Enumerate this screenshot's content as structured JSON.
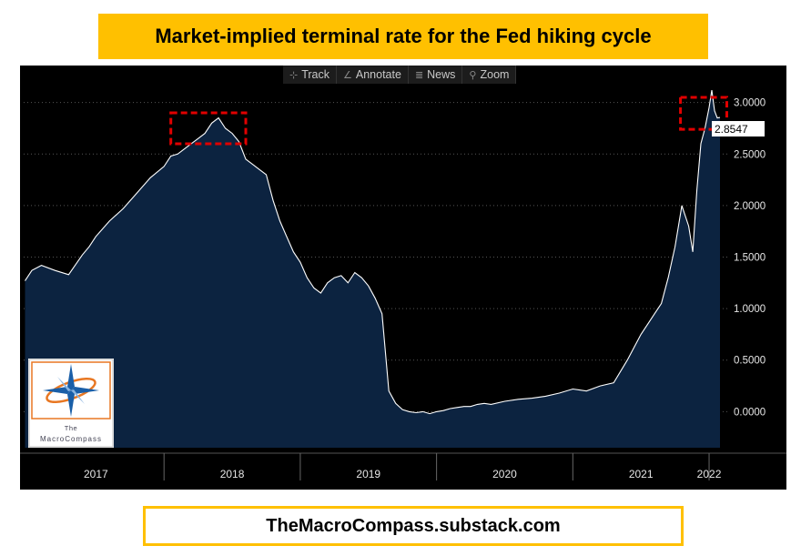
{
  "title": "Market-implied terminal rate for the Fed hiking cycle",
  "footer": "TheMacroCompass.substack.com",
  "toolbar": [
    {
      "icon": "crosshair-icon",
      "glyph": "⊹",
      "label": "Track"
    },
    {
      "icon": "pencil-icon",
      "glyph": "∠",
      "label": "Annotate"
    },
    {
      "icon": "news-icon",
      "glyph": "≣",
      "label": "News"
    },
    {
      "icon": "magnifier-icon",
      "glyph": "⚲",
      "label": "Zoom"
    }
  ],
  "logo": {
    "line1": "The",
    "line2": "MacroCompass"
  },
  "last_value_label": "2.8547",
  "colors": {
    "title_bg": "#ffc000",
    "area_fill": "#0c2340",
    "line": "#ffffff",
    "highlight": "#e00000"
  },
  "chart_data": {
    "type": "area",
    "ylim": [
      -0.35,
      3.2
    ],
    "y_ticks": [
      0.0,
      0.5,
      1.0,
      1.5,
      2.0,
      2.5,
      3.0
    ],
    "y_tick_labels": [
      "0.0000",
      "0.5000",
      "1.0000",
      "1.5000",
      "2.0000",
      "2.5000",
      "3.0000"
    ],
    "x_range": [
      2016.97,
      2022.1
    ],
    "year_labels": [
      {
        "label": "2017",
        "x": 2017.5
      },
      {
        "label": "2018",
        "x": 2018.5
      },
      {
        "label": "2019",
        "x": 2019.5
      },
      {
        "label": "2020",
        "x": 2020.5
      },
      {
        "label": "2021",
        "x": 2021.5
      },
      {
        "label": "2022",
        "x": 2022.0
      }
    ],
    "year_boundaries": [
      2018.0,
      2019.0,
      2020.0,
      2021.0,
      2022.0
    ],
    "last_value": 2.8547,
    "highlight_boxes": [
      {
        "x": [
          2018.05,
          2018.6
        ],
        "y": [
          2.6,
          2.9
        ]
      },
      {
        "x": [
          2021.79,
          2022.13
        ],
        "y": [
          2.74,
          3.05
        ]
      }
    ],
    "x": [
      2016.98,
      2017.03,
      2017.1,
      2017.2,
      2017.3,
      2017.4,
      2017.45,
      2017.5,
      2017.6,
      2017.7,
      2017.8,
      2017.9,
      2018.0,
      2018.05,
      2018.1,
      2018.15,
      2018.2,
      2018.25,
      2018.3,
      2018.35,
      2018.4,
      2018.45,
      2018.5,
      2018.55,
      2018.6,
      2018.65,
      2018.7,
      2018.75,
      2018.8,
      2018.85,
      2018.9,
      2018.95,
      2019.0,
      2019.05,
      2019.1,
      2019.15,
      2019.2,
      2019.25,
      2019.3,
      2019.35,
      2019.4,
      2019.45,
      2019.5,
      2019.55,
      2019.6,
      2019.65,
      2019.7,
      2019.75,
      2019.8,
      2019.85,
      2019.9,
      2019.95,
      2020.0,
      2020.05,
      2020.1,
      2020.15,
      2020.2,
      2020.25,
      2020.3,
      2020.35,
      2020.4,
      2020.5,
      2020.6,
      2020.7,
      2020.8,
      2020.9,
      2021.0,
      2021.1,
      2021.2,
      2021.3,
      2021.4,
      2021.5,
      2021.55,
      2021.6,
      2021.65,
      2021.7,
      2021.75,
      2021.8,
      2021.85,
      2021.88,
      2021.91,
      2021.94,
      2021.97,
      2022.0,
      2022.02,
      2022.04,
      2022.06,
      2022.08
    ],
    "y": [
      1.27,
      1.37,
      1.42,
      1.37,
      1.33,
      1.52,
      1.6,
      1.7,
      1.85,
      1.97,
      2.12,
      2.27,
      2.38,
      2.48,
      2.5,
      2.55,
      2.6,
      2.65,
      2.7,
      2.8,
      2.85,
      2.75,
      2.7,
      2.62,
      2.45,
      2.4,
      2.35,
      2.3,
      2.05,
      1.85,
      1.7,
      1.55,
      1.45,
      1.3,
      1.2,
      1.15,
      1.25,
      1.3,
      1.32,
      1.25,
      1.35,
      1.3,
      1.22,
      1.1,
      0.95,
      0.2,
      0.08,
      0.02,
      0.0,
      -0.01,
      0.0,
      -0.02,
      0.0,
      0.01,
      0.03,
      0.04,
      0.05,
      0.05,
      0.07,
      0.08,
      0.07,
      0.1,
      0.12,
      0.13,
      0.15,
      0.18,
      0.22,
      0.2,
      0.25,
      0.28,
      0.5,
      0.75,
      0.85,
      0.95,
      1.05,
      1.3,
      1.6,
      2.0,
      1.8,
      1.55,
      2.15,
      2.6,
      2.75,
      2.95,
      3.12,
      2.92,
      2.85,
      2.8547
    ]
  }
}
